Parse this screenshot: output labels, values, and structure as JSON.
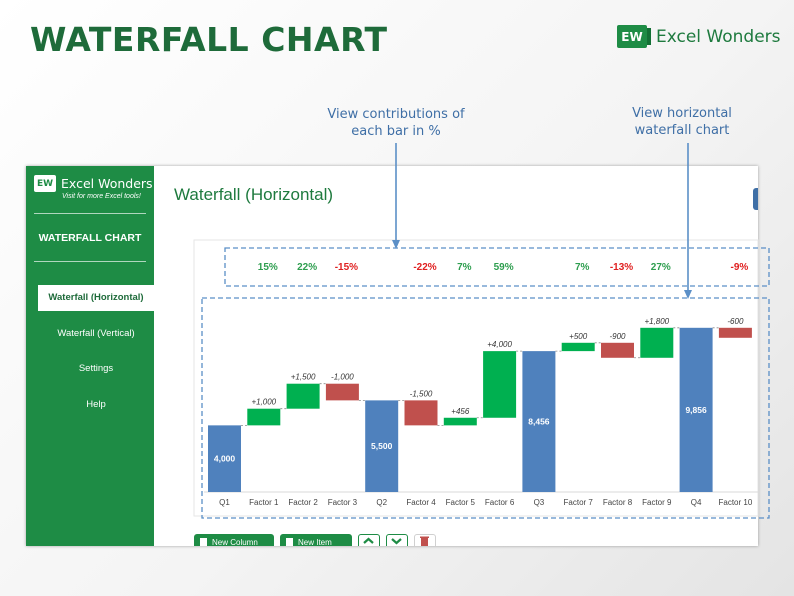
{
  "page": {
    "title": "WATERFALL CHART",
    "brand": "Excel Wonders",
    "logo": "EW",
    "callouts": {
      "contributions": "View contributions of each bar in %",
      "horizontal": "View horizontal waterfall chart"
    }
  },
  "app": {
    "sidebar": {
      "logo": "EW",
      "brand": "Excel Wonders",
      "tagline": "Visit for more Excel tools!",
      "heading": "WATERFALL CHART",
      "items": [
        {
          "label": "Waterfall (Horizontal)",
          "active": true
        },
        {
          "label": "Waterfall (Vertical)",
          "active": false
        },
        {
          "label": "Settings",
          "active": false
        },
        {
          "label": "Help",
          "active": false
        }
      ]
    },
    "content_title": "Waterfall (Horizontal)",
    "toolbar": {
      "new_column": "New Column",
      "new_item": "New Item",
      "up_icon": "chevron-up-icon",
      "down_icon": "chevron-down-icon",
      "delete_icon": "trash-icon"
    }
  },
  "colors": {
    "title": "#1e6b3a",
    "brand_green": "#1e8c45",
    "total": "#4f81bd",
    "increase": "#00b050",
    "decrease": "#c0504d",
    "pct_positive": "#2e9e4f",
    "pct_negative": "#e02020",
    "callout": "#3f6fa6"
  },
  "chart_data": {
    "type": "waterfall",
    "categories": [
      "Q1",
      "Factor 1",
      "Factor 2",
      "Factor 3",
      "Q2",
      "Factor 4",
      "Factor 5",
      "Factor 6",
      "Q3",
      "Factor 7",
      "Factor 8",
      "Factor 9",
      "Q4",
      "Factor 10"
    ],
    "kinds": [
      "total",
      "change",
      "change",
      "change",
      "total",
      "change",
      "change",
      "change",
      "total",
      "change",
      "change",
      "change",
      "total",
      "change"
    ],
    "values": [
      4000,
      1000,
      1500,
      -1000,
      5500,
      -1500,
      456,
      4000,
      8456,
      500,
      -900,
      1800,
      9856,
      -600
    ],
    "value_labels": [
      "4,000",
      "+1,000",
      "+1,500",
      "-1,000",
      "5,500",
      "-1,500",
      "+456",
      "+4,000",
      "8,456",
      "+500",
      "-900",
      "+1,800",
      "9,856",
      "-600"
    ],
    "contributions": [
      "",
      "15%",
      "22%",
      "-15%",
      "",
      "-22%",
      "7%",
      "59%",
      "",
      "7%",
      "-13%",
      "27%",
      "",
      "-9%"
    ],
    "grid": false,
    "legend": "none"
  }
}
